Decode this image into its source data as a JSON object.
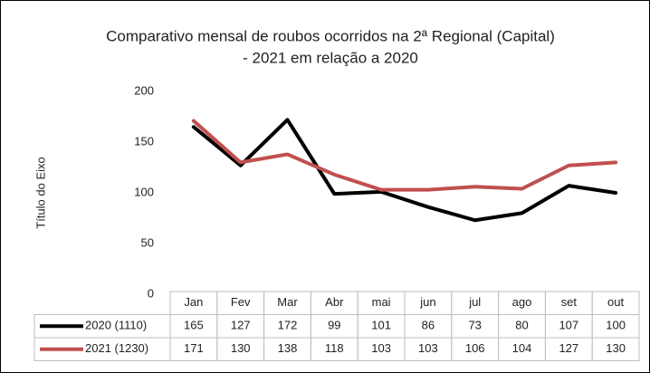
{
  "chart_data": {
    "type": "line",
    "title": [
      "Comparativo mensal de roubos ocorridos na 2ª Regional (Capital)",
      "- 2021 em relação a 2020"
    ],
    "y_label": "Título do Eixo",
    "categories": [
      "Jan",
      "Fev",
      "Mar",
      "Abr",
      "mai",
      "jun",
      "jul",
      "ago",
      "set",
      "out"
    ],
    "series": [
      {
        "name": "2020 (1110)",
        "color": "#000000",
        "values": [
          165,
          127,
          172,
          99,
          101,
          86,
          73,
          80,
          107,
          100
        ]
      },
      {
        "name": "2021 (1230)",
        "color": "#c0504d",
        "values": [
          171,
          130,
          138,
          118,
          103,
          103,
          106,
          104,
          127,
          130
        ]
      }
    ],
    "ylim": [
      0,
      200
    ],
    "yticks": [
      0,
      50,
      100,
      150,
      200
    ],
    "grid": false,
    "data_table": true
  }
}
